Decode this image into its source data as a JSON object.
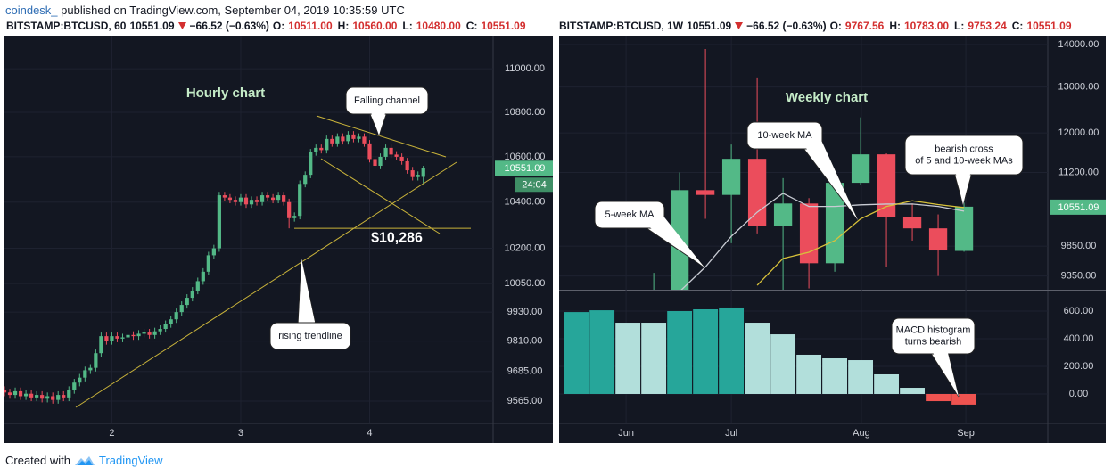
{
  "header": {
    "author": "coindesk_",
    "published": "published on TradingView.com, September 04, 2019 10:35:59 UTC"
  },
  "footer": {
    "created_with": "Created with",
    "brand": "TradingView"
  },
  "chart_data": [
    {
      "type": "candlestick",
      "title": "Hourly chart",
      "log_scale": true,
      "grid": true,
      "legend": {
        "symbol": "BITSTAMP:BTCUSD, 60",
        "price": "10551.09",
        "change": "−66.52 (−0.63%)",
        "ohlc": [
          {
            "label": "O:",
            "value": "10511.00"
          },
          {
            "label": "H:",
            "value": "10560.00"
          },
          {
            "label": "L:",
            "value": "10480.00"
          },
          {
            "label": "C:",
            "value": "10551.09"
          }
        ]
      },
      "up_color": "#53b987",
      "down_color": "#eb4d5c",
      "xlim": [
        4,
        95
      ],
      "xticks": [
        {
          "value": 24,
          "label": "2"
        },
        {
          "value": 48,
          "label": "3"
        },
        {
          "value": 72,
          "label": "4"
        }
      ],
      "ylim": [
        9476,
        11154
      ],
      "yticks": [
        {
          "value": 11000,
          "label": "11000.00"
        },
        {
          "value": 10800,
          "label": "10800.00"
        },
        {
          "value": 10600,
          "label": "10600.00"
        },
        {
          "value": 10400,
          "label": "10400.00"
        },
        {
          "value": 10200,
          "label": "10200.00"
        },
        {
          "value": 10050,
          "label": "10050.00"
        },
        {
          "value": 9930,
          "label": "9930.00"
        },
        {
          "value": 9810,
          "label": "9810.00"
        },
        {
          "value": 9685,
          "label": "9685.00"
        },
        {
          "value": 9565,
          "label": "9565.00"
        }
      ],
      "x": [
        4,
        5,
        6,
        7,
        8,
        9,
        10,
        11,
        12,
        13,
        14,
        15,
        16,
        17,
        18,
        19,
        20,
        21,
        22,
        23,
        24,
        25,
        26,
        27,
        28,
        29,
        30,
        31,
        32,
        33,
        34,
        35,
        36,
        37,
        38,
        39,
        40,
        41,
        42,
        43,
        44,
        45,
        46,
        47,
        48,
        49,
        50,
        51,
        52,
        53,
        54,
        55,
        56,
        57,
        58,
        59,
        60,
        61,
        62,
        63,
        64,
        65,
        66,
        67,
        68,
        69,
        70,
        71,
        72,
        73,
        74,
        75,
        76,
        77,
        78,
        79,
        80,
        81,
        82
      ],
      "open": [
        9610,
        9600,
        9590,
        9605,
        9585,
        9595,
        9580,
        9590,
        9575,
        9585,
        9570,
        9590,
        9580,
        9610,
        9640,
        9660,
        9690,
        9700,
        9760,
        9830,
        9810,
        9830,
        9820,
        9825,
        9835,
        9830,
        9840,
        9845,
        9835,
        9850,
        9860,
        9880,
        9900,
        9930,
        9960,
        9990,
        10020,
        10060,
        10100,
        10170,
        10200,
        10430,
        10420,
        10410,
        10400,
        10420,
        10390,
        10410,
        10400,
        10430,
        10420,
        10410,
        10430,
        10400,
        10330,
        10340,
        10480,
        10520,
        10620,
        10640,
        10630,
        10680,
        10660,
        10690,
        10670,
        10700,
        10680,
        10690,
        10660,
        10590,
        10560,
        10600,
        10640,
        10610,
        10600,
        10580,
        10540,
        10510,
        10511
      ],
      "high": [
        9625,
        9615,
        9620,
        9620,
        9610,
        9610,
        9605,
        9605,
        9600,
        9600,
        9605,
        9605,
        9625,
        9655,
        9675,
        9705,
        9715,
        9775,
        9845,
        9845,
        9845,
        9845,
        9840,
        9850,
        9850,
        9855,
        9860,
        9860,
        9865,
        9875,
        9895,
        9915,
        9945,
        9975,
        10005,
        10035,
        10075,
        10115,
        10185,
        10215,
        10445,
        10445,
        10435,
        10425,
        10435,
        10435,
        10425,
        10425,
        10445,
        10445,
        10435,
        10445,
        10445,
        10415,
        10355,
        10495,
        10535,
        10635,
        10655,
        10655,
        10695,
        10695,
        10705,
        10705,
        10715,
        10715,
        10705,
        10705,
        10675,
        10605,
        10615,
        10655,
        10655,
        10625,
        10615,
        10595,
        10555,
        10535,
        10560
      ],
      "low": [
        9585,
        9575,
        9575,
        9570,
        9570,
        9565,
        9565,
        9560,
        9560,
        9555,
        9555,
        9565,
        9565,
        9595,
        9625,
        9645,
        9675,
        9685,
        9745,
        9795,
        9795,
        9805,
        9805,
        9810,
        9815,
        9815,
        9825,
        9820,
        9820,
        9835,
        9845,
        9865,
        9885,
        9915,
        9945,
        9975,
        10005,
        10045,
        10085,
        10155,
        10185,
        10405,
        10395,
        10385,
        10385,
        10375,
        10375,
        10385,
        10385,
        10405,
        10395,
        10395,
        10385,
        10286,
        10315,
        10325,
        10465,
        10505,
        10605,
        10615,
        10615,
        10645,
        10645,
        10655,
        10655,
        10665,
        10665,
        10645,
        10575,
        10545,
        10545,
        10585,
        10595,
        10585,
        10565,
        10525,
        10495,
        10495,
        10480
      ],
      "close": [
        9600,
        9590,
        9605,
        9585,
        9595,
        9580,
        9590,
        9575,
        9585,
        9570,
        9590,
        9580,
        9610,
        9640,
        9660,
        9690,
        9700,
        9760,
        9830,
        9810,
        9830,
        9820,
        9825,
        9835,
        9830,
        9840,
        9845,
        9835,
        9850,
        9860,
        9880,
        9900,
        9930,
        9960,
        9990,
        10020,
        10060,
        10100,
        10170,
        10200,
        10430,
        10420,
        10410,
        10400,
        10420,
        10390,
        10410,
        10400,
        10430,
        10420,
        10410,
        10430,
        10400,
        10330,
        10340,
        10480,
        10520,
        10620,
        10640,
        10630,
        10680,
        10660,
        10690,
        10670,
        10700,
        10680,
        10690,
        10660,
        10590,
        10560,
        10600,
        10640,
        10610,
        10600,
        10580,
        10540,
        10510,
        10520,
        10551.09
      ],
      "last_price": 10551.09,
      "countdown": "24:04",
      "support": {
        "value": 10286,
        "label": "$10,286"
      },
      "annotations": [
        [
          "Falling channel"
        ],
        [
          "rising trendline"
        ]
      ]
    },
    {
      "type": "candlestick",
      "title": "Weekly chart",
      "log_scale": true,
      "grid": true,
      "legend": {
        "symbol": "BITSTAMP:BTCUSD, 1W",
        "price": "10551.09",
        "change": "−66.52 (−0.63%)",
        "ohlc": [
          {
            "label": "O:",
            "value": "9767.56"
          },
          {
            "label": "H:",
            "value": "10783.00"
          },
          {
            "label": "L:",
            "value": "9753.24"
          },
          {
            "label": "C:",
            "value": "10551.09"
          }
        ]
      },
      "up_color": "#53b987",
      "down_color": "#eb4d5c",
      "xlim": [
        -2.66,
        16.24
      ],
      "xticks": [
        {
          "value": -0.07,
          "label": "Jun"
        },
        {
          "value": 4,
          "label": "Jul"
        },
        {
          "value": 9.03,
          "label": "Aug"
        },
        {
          "value": 13.07,
          "label": "Sep"
        }
      ],
      "ylim": [
        9129,
        14219
      ],
      "yticks": [
        {
          "value": 14000,
          "label": "14000.00"
        },
        {
          "value": 13000,
          "label": "13000.00"
        },
        {
          "value": 12000,
          "label": "12000.00"
        },
        {
          "value": 11200,
          "label": "11200.00"
        },
        {
          "value": 9850,
          "label": "9850.00"
        },
        {
          "value": 9350,
          "label": "9350.00"
        }
      ],
      "x": [
        1,
        2,
        3,
        4,
        5,
        6,
        7,
        8,
        9,
        10,
        11,
        12,
        13
      ],
      "open": [
        8000,
        8960,
        10860,
        10770,
        11470,
        10200,
        10610,
        9560,
        11000,
        11560,
        10370,
        10160,
        9767.56
      ],
      "high": [
        9400,
        11200,
        13890,
        11760,
        13220,
        11090,
        10710,
        11100,
        12330,
        11580,
        10610,
        10410,
        10783
      ],
      "low": [
        7500,
        8920,
        10330,
        9900,
        10070,
        9100,
        9150,
        9420,
        10960,
        9500,
        9945,
        9350,
        9753.24
      ],
      "close": [
        8960,
        10860,
        10770,
        11470,
        10200,
        10610,
        9560,
        11000,
        11560,
        10370,
        10160,
        9775,
        10551.09
      ],
      "series": [
        {
          "color": "#c8cbd3",
          "values": [
            null,
            9100,
            9500,
            10020,
            10450,
            10800,
            10555,
            10555,
            10585,
            10600,
            10600,
            10555,
            10470
          ]
        },
        {
          "color": "#d8c23a",
          "values": [
            null,
            null,
            null,
            null,
            9200,
            9640,
            9745,
            9945,
            10330,
            10555,
            10660,
            10590,
            10535
          ]
        }
      ],
      "last_price": 10551.09,
      "macd": {
        "x": [
          -2,
          -1,
          0,
          1,
          2,
          3,
          4,
          5,
          6,
          7,
          8,
          9,
          10,
          11,
          12,
          13
        ],
        "values": [
          593,
          606,
          516,
          516,
          600,
          613,
          626,
          516,
          432,
          284,
          258,
          245,
          142,
          45,
          -52,
          -77
        ],
        "colors": [
          "#26a69a",
          "#26a69a",
          "#b2dfdb",
          "#b2dfdb",
          "#26a69a",
          "#26a69a",
          "#26a69a",
          "#b2dfdb",
          "#b2dfdb",
          "#b2dfdb",
          "#b2dfdb",
          "#b2dfdb",
          "#b2dfdb",
          "#b2dfdb",
          "#ef5350",
          "#ef5350"
        ],
        "ylim": [
          -213,
          742
        ],
        "yticks": [
          {
            "value": 600,
            "label": "600.00"
          },
          {
            "value": 400,
            "label": "400.00"
          },
          {
            "value": 200,
            "label": "200.00"
          },
          {
            "value": 0,
            "label": "0.00"
          }
        ]
      },
      "annotations": [
        [
          "5-week MA"
        ],
        [
          "10-week MA"
        ],
        [
          "bearish cross",
          "of 5 and 10-week MAs"
        ],
        [
          "MACD histogram",
          "turns bearish"
        ]
      ]
    }
  ]
}
